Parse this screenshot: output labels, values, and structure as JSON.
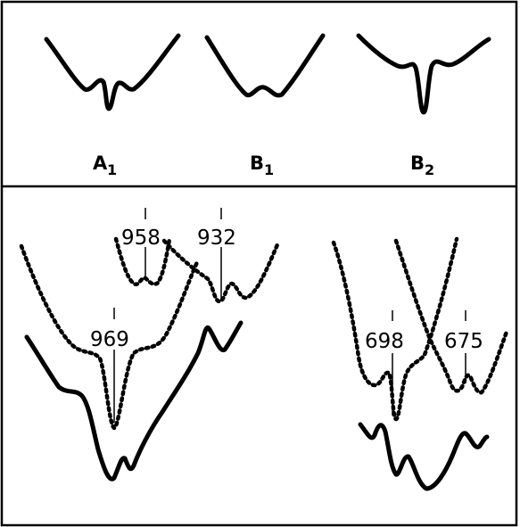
{
  "symmetry_modes": [
    {
      "letter": "A",
      "sub": "1"
    },
    {
      "letter": "B",
      "sub": "1"
    },
    {
      "letter": "B",
      "sub": "2"
    }
  ],
  "band_labels": [
    "958",
    "932",
    "969",
    "698",
    "675"
  ]
}
